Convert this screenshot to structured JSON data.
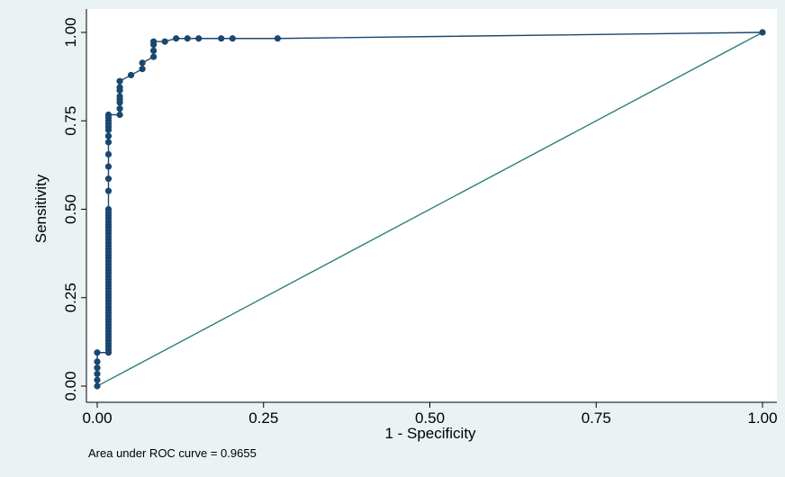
{
  "chart_data": {
    "type": "line",
    "title": "",
    "xlabel": "1 - Specificity",
    "ylabel": "Sensitivity",
    "xlim": [
      0,
      1
    ],
    "ylim": [
      0,
      1
    ],
    "xticks": [
      "0.00",
      "0.25",
      "0.50",
      "0.75",
      "1.00"
    ],
    "yticks": [
      "0.00",
      "0.25",
      "0.50",
      "0.75",
      "1.00"
    ],
    "grid": false,
    "legend": "none",
    "note": "Area under ROC curve = 0.9655",
    "colors": {
      "background": "#eaf2f3",
      "plot_area": "#ffffff",
      "curve": "#1a476f",
      "reference": "#2e7f7a"
    },
    "series": [
      {
        "values_x": [
          0.0,
          0.0,
          0.0,
          0.0,
          0.0,
          0.0,
          0.0169,
          0.0169,
          0.0169,
          0.0169,
          0.0169,
          0.0169,
          0.0169,
          0.0169,
          0.0169,
          0.0169,
          0.0169,
          0.0169,
          0.0169,
          0.0169,
          0.0169,
          0.0169,
          0.0169,
          0.0169,
          0.0169,
          0.0169,
          0.0169,
          0.0169,
          0.0169,
          0.0169,
          0.0169,
          0.0169,
          0.0169,
          0.0169,
          0.0169,
          0.0169,
          0.0169,
          0.0169,
          0.0169,
          0.0169,
          0.0169,
          0.0169,
          0.0169,
          0.0169,
          0.0169,
          0.0169,
          0.0169,
          0.0169,
          0.0169,
          0.0169,
          0.0169,
          0.0169,
          0.0169,
          0.0169,
          0.0169,
          0.0169,
          0.0169,
          0.0169,
          0.0169,
          0.0169,
          0.0169,
          0.0169,
          0.0169,
          0.0169,
          0.0169,
          0.0169,
          0.0339,
          0.0339,
          0.0339,
          0.0339,
          0.0339,
          0.0339,
          0.0339,
          0.0339,
          0.0508,
          0.0678,
          0.0678,
          0.0847,
          0.0847,
          0.0847,
          0.0847,
          0.1017,
          0.1186,
          0.1356,
          0.1525,
          0.1864,
          0.2034,
          0.2712,
          1.0
        ],
        "values_y": [
          0.0,
          0.0172,
          0.0345,
          0.0517,
          0.069,
          0.0948,
          0.0948,
          0.1034,
          0.1121,
          0.1207,
          0.1293,
          0.1379,
          0.1466,
          0.1552,
          0.1638,
          0.1724,
          0.181,
          0.1897,
          0.1983,
          0.2069,
          0.2155,
          0.2241,
          0.2328,
          0.2414,
          0.25,
          0.2586,
          0.2672,
          0.2759,
          0.2845,
          0.2931,
          0.3017,
          0.3103,
          0.319,
          0.3276,
          0.3362,
          0.3448,
          0.3534,
          0.3621,
          0.3707,
          0.3793,
          0.3879,
          0.3966,
          0.4052,
          0.4138,
          0.4224,
          0.431,
          0.4397,
          0.4483,
          0.4569,
          0.4655,
          0.4741,
          0.4828,
          0.4914,
          0.5,
          0.5517,
          0.5862,
          0.6207,
          0.6552,
          0.6897,
          0.7069,
          0.7241,
          0.7328,
          0.7414,
          0.75,
          0.7586,
          0.7672,
          0.7672,
          0.7845,
          0.8017,
          0.8103,
          0.819,
          0.8362,
          0.8448,
          0.8621,
          0.8793,
          0.8966,
          0.9138,
          0.931,
          0.9483,
          0.9655,
          0.9741,
          0.9741,
          0.9828,
          0.9828,
          0.9828,
          0.9828,
          0.9828,
          0.9828,
          1.0
        ]
      },
      {
        "values_x": [
          0,
          1
        ],
        "values_y": [
          0,
          1
        ]
      }
    ]
  }
}
